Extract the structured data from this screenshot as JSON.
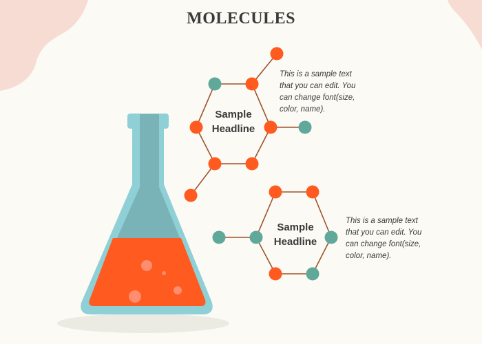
{
  "title": "MOLECULES",
  "colors": {
    "background": "#fbfaf4",
    "orange_node": "#ff5a1f",
    "teal_node": "#5fa89a",
    "bond": "#a0522d",
    "flask_outer": "#8fd0d6",
    "flask_inner": "#79b3b7",
    "liquid": "#ff5a1f",
    "blob": "#f7dcd3"
  },
  "molecules": [
    {
      "headline_line1": "Sample",
      "headline_line2": "Headline",
      "text_lines": [
        "This is a sample text",
        "that you can edit. You",
        "can change font(size,",
        "color, name)."
      ]
    },
    {
      "headline_line1": "Sample",
      "headline_line2": "Headline",
      "text_lines": [
        "This is a sample text",
        "that you can edit. You",
        "can change font(size,",
        "color, name)."
      ]
    }
  ]
}
